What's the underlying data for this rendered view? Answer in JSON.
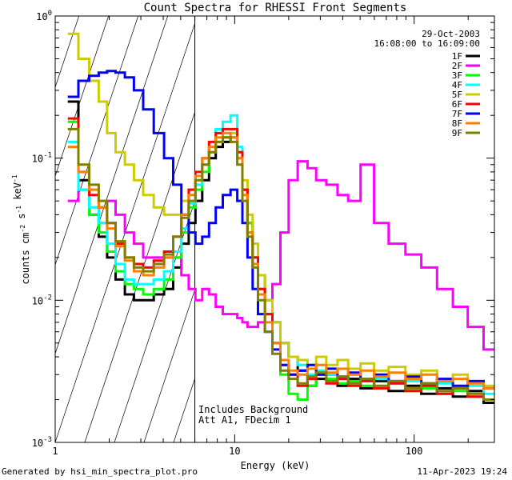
{
  "chart_data": {
    "type": "line",
    "title": "Count Spectra for RHESSI Front Segments",
    "xlabel": "Energy (keV)",
    "ylabel": "counts cm^-2 s^-1 keV^-1",
    "xscale": "log",
    "yscale": "log",
    "xlim": [
      1.0,
      280.0
    ],
    "ylim": [
      0.001,
      1.0
    ],
    "x_tick_labels": [
      {
        "value": 1,
        "label": "1"
      },
      {
        "value": 10,
        "label": "10"
      },
      {
        "value": 100,
        "label": "100"
      }
    ],
    "y_tick_labels": [
      {
        "value": 0.001,
        "base": "10",
        "exp": "-3"
      },
      {
        "value": 0.01,
        "base": "10",
        "exp": "-2"
      },
      {
        "value": 0.1,
        "base": "10",
        "exp": "-1"
      },
      {
        "value": 1,
        "base": "10",
        "exp": "0"
      }
    ],
    "date": "29-Oct-2003",
    "time_range": "16:08:00 to 16:09:00",
    "shaded_region": {
      "x_from": 1.0,
      "x_to": 6.0,
      "style": "diagonal hatch"
    },
    "annotations": [
      "Includes Background",
      "Att A1, FDecim 1"
    ],
    "series": [
      {
        "name": "1F",
        "color": "#000000",
        "x": [
          1.25,
          1.45,
          1.65,
          1.85,
          2.05,
          2.3,
          2.6,
          2.9,
          3.3,
          3.8,
          4.3,
          4.8,
          5.3,
          5.8,
          6.3,
          6.9,
          7.5,
          8.2,
          9.0,
          10.0,
          10.7,
          11.4,
          12.2,
          13.0,
          14.0,
          15.5,
          17.0,
          19.0,
          21.0,
          24.0,
          27.0,
          30.0,
          35.0,
          40.0,
          46.0,
          55.0,
          65.0,
          80.0,
          100.0,
          120.0,
          150.0,
          180.0,
          220.0,
          270.0
        ],
        "y": [
          0.25,
          0.07,
          0.04,
          0.028,
          0.02,
          0.014,
          0.011,
          0.01,
          0.01,
          0.011,
          0.012,
          0.017,
          0.025,
          0.035,
          0.05,
          0.07,
          0.1,
          0.12,
          0.13,
          0.14,
          0.1,
          0.06,
          0.035,
          0.02,
          0.015,
          0.01,
          0.007,
          0.005,
          0.004,
          0.0032,
          0.0025,
          0.0028,
          0.003,
          0.0025,
          0.0028,
          0.0024,
          0.0027,
          0.0023,
          0.0025,
          0.0022,
          0.0024,
          0.0021,
          0.0023,
          0.0019
        ]
      },
      {
        "name": "2F",
        "color": "#ff00ff",
        "x": [
          1.25,
          1.45,
          1.65,
          1.85,
          2.05,
          2.3,
          2.6,
          2.9,
          3.3,
          3.8,
          4.3,
          4.8,
          5.3,
          5.8,
          6.3,
          6.9,
          7.5,
          8.2,
          9.0,
          10.0,
          10.7,
          11.4,
          12.2,
          13.0,
          14.0,
          15.5,
          17.0,
          19.0,
          21.0,
          24.0,
          27.0,
          30.0,
          35.0,
          40.0,
          46.0,
          55.0,
          65.0,
          80.0,
          100.0,
          120.0,
          150.0,
          180.0,
          220.0,
          270.0
        ],
        "y": [
          0.05,
          0.06,
          0.04,
          0.035,
          0.05,
          0.04,
          0.03,
          0.025,
          0.02,
          0.02,
          0.02,
          0.02,
          0.015,
          0.012,
          0.01,
          0.012,
          0.011,
          0.009,
          0.008,
          0.008,
          0.0075,
          0.007,
          0.0065,
          0.0065,
          0.007,
          0.008,
          0.013,
          0.03,
          0.07,
          0.095,
          0.085,
          0.07,
          0.065,
          0.055,
          0.05,
          0.09,
          0.035,
          0.025,
          0.021,
          0.017,
          0.012,
          0.009,
          0.0065,
          0.0045
        ]
      },
      {
        "name": "3F",
        "color": "#00ff00",
        "x": [
          1.25,
          1.45,
          1.65,
          1.85,
          2.05,
          2.3,
          2.6,
          2.9,
          3.3,
          3.8,
          4.3,
          4.8,
          5.3,
          5.8,
          6.3,
          6.9,
          7.5,
          8.2,
          9.0,
          10.0,
          10.7,
          11.4,
          12.2,
          13.0,
          14.0,
          15.5,
          17.0,
          19.0,
          21.0,
          24.0,
          27.0,
          30.0,
          35.0,
          40.0,
          46.0,
          55.0,
          65.0,
          80.0,
          100.0,
          120.0,
          150.0,
          180.0,
          220.0,
          270.0
        ],
        "y": [
          0.18,
          0.06,
          0.04,
          0.03,
          0.022,
          0.016,
          0.013,
          0.012,
          0.011,
          0.012,
          0.014,
          0.02,
          0.03,
          0.045,
          0.06,
          0.08,
          0.11,
          0.13,
          0.14,
          0.15,
          0.11,
          0.06,
          0.035,
          0.02,
          0.012,
          0.008,
          0.005,
          0.003,
          0.0022,
          0.002,
          0.0025,
          0.003,
          0.0028,
          0.0026,
          0.0027,
          0.0025,
          0.0024,
          0.0026,
          0.0023,
          0.0024,
          0.0022,
          0.0023,
          0.0021,
          0.002
        ]
      },
      {
        "name": "4F",
        "color": "#00ffff",
        "x": [
          1.25,
          1.45,
          1.65,
          1.85,
          2.05,
          2.3,
          2.6,
          2.9,
          3.3,
          3.8,
          4.3,
          4.8,
          5.3,
          5.8,
          6.3,
          6.9,
          7.5,
          8.2,
          9.0,
          10.0,
          10.7,
          11.4,
          12.2,
          13.0,
          14.0,
          15.5,
          17.0,
          19.0,
          21.0,
          24.0,
          27.0,
          30.0,
          35.0,
          40.0,
          46.0,
          55.0,
          65.0,
          80.0,
          100.0,
          120.0,
          150.0,
          180.0,
          220.0,
          270.0
        ],
        "y": [
          0.13,
          0.06,
          0.045,
          0.035,
          0.025,
          0.018,
          0.014,
          0.013,
          0.013,
          0.014,
          0.016,
          0.022,
          0.032,
          0.048,
          0.065,
          0.09,
          0.12,
          0.16,
          0.18,
          0.2,
          0.12,
          0.06,
          0.03,
          0.02,
          0.015,
          0.01,
          0.007,
          0.005,
          0.004,
          0.0035,
          0.003,
          0.0032,
          0.003,
          0.0028,
          0.003,
          0.0027,
          0.0028,
          0.0026,
          0.0027,
          0.0025,
          0.0026,
          0.0024,
          0.0025,
          0.0022
        ]
      },
      {
        "name": "5F",
        "color": "#cccc00",
        "x": [
          1.25,
          1.45,
          1.65,
          1.85,
          2.05,
          2.3,
          2.6,
          2.9,
          3.3,
          3.8,
          4.3,
          4.8,
          5.3,
          5.8,
          6.3,
          6.9,
          7.5,
          8.2,
          9.0,
          10.0,
          10.7,
          11.4,
          12.2,
          13.0,
          14.0,
          15.5,
          17.0,
          19.0,
          21.0,
          24.0,
          27.0,
          30.0,
          35.0,
          40.0,
          46.0,
          55.0,
          65.0,
          80.0,
          100.0,
          120.0,
          150.0,
          180.0,
          220.0,
          270.0
        ],
        "y": [
          0.75,
          0.5,
          0.35,
          0.25,
          0.15,
          0.11,
          0.09,
          0.07,
          0.055,
          0.045,
          0.04,
          0.04,
          0.05,
          0.06,
          0.07,
          0.09,
          0.11,
          0.13,
          0.14,
          0.15,
          0.11,
          0.07,
          0.04,
          0.025,
          0.015,
          0.01,
          0.007,
          0.005,
          0.004,
          0.0038,
          0.0035,
          0.004,
          0.0035,
          0.0038,
          0.0033,
          0.0036,
          0.0032,
          0.0034,
          0.003,
          0.0032,
          0.0028,
          0.003,
          0.0027,
          0.0025
        ]
      },
      {
        "name": "6F",
        "color": "#ff0000",
        "x": [
          1.25,
          1.45,
          1.65,
          1.85,
          2.05,
          2.3,
          2.6,
          2.9,
          3.3,
          3.8,
          4.3,
          4.8,
          5.3,
          5.8,
          6.3,
          6.9,
          7.5,
          8.2,
          9.0,
          10.0,
          10.7,
          11.4,
          12.2,
          13.0,
          14.0,
          15.5,
          17.0,
          19.0,
          21.0,
          24.0,
          27.0,
          30.0,
          35.0,
          40.0,
          46.0,
          55.0,
          65.0,
          80.0,
          100.0,
          120.0,
          150.0,
          180.0,
          220.0,
          270.0
        ],
        "y": [
          0.19,
          0.08,
          0.055,
          0.045,
          0.035,
          0.025,
          0.02,
          0.018,
          0.017,
          0.019,
          0.022,
          0.028,
          0.04,
          0.06,
          0.08,
          0.1,
          0.13,
          0.15,
          0.16,
          0.16,
          0.11,
          0.06,
          0.03,
          0.02,
          0.012,
          0.008,
          0.005,
          0.0035,
          0.003,
          0.0025,
          0.0028,
          0.003,
          0.0026,
          0.0028,
          0.0025,
          0.0027,
          0.0024,
          0.0026,
          0.0023,
          0.0025,
          0.0022,
          0.0024,
          0.0021,
          0.002
        ]
      },
      {
        "name": "7F",
        "color": "#0000ff",
        "x": [
          1.25,
          1.45,
          1.65,
          1.85,
          2.05,
          2.3,
          2.6,
          2.9,
          3.3,
          3.8,
          4.3,
          4.8,
          5.3,
          5.8,
          6.3,
          6.9,
          7.5,
          8.2,
          9.0,
          10.0,
          10.7,
          11.4,
          12.2,
          13.0,
          14.0,
          15.5,
          17.0,
          19.0,
          21.0,
          24.0,
          27.0,
          30.0,
          35.0,
          40.0,
          46.0,
          55.0,
          65.0,
          80.0,
          100.0,
          120.0,
          150.0,
          180.0,
          220.0,
          270.0
        ],
        "y": [
          0.27,
          0.35,
          0.38,
          0.4,
          0.41,
          0.4,
          0.37,
          0.3,
          0.22,
          0.15,
          0.1,
          0.065,
          0.04,
          0.03,
          0.025,
          0.028,
          0.035,
          0.045,
          0.055,
          0.06,
          0.05,
          0.035,
          0.02,
          0.012,
          0.008,
          0.006,
          0.0045,
          0.0035,
          0.003,
          0.0032,
          0.0035,
          0.003,
          0.0033,
          0.0029,
          0.0031,
          0.0028,
          0.003,
          0.0027,
          0.0029,
          0.0026,
          0.0028,
          0.0025,
          0.0027,
          0.0024
        ]
      },
      {
        "name": "8F",
        "color": "#ff8000",
        "x": [
          1.25,
          1.45,
          1.65,
          1.85,
          2.05,
          2.3,
          2.6,
          2.9,
          3.3,
          3.8,
          4.3,
          4.8,
          5.3,
          5.8,
          6.3,
          6.9,
          7.5,
          8.2,
          9.0,
          10.0,
          10.7,
          11.4,
          12.2,
          13.0,
          14.0,
          15.5,
          17.0,
          19.0,
          21.0,
          24.0,
          27.0,
          30.0,
          35.0,
          40.0,
          46.0,
          55.0,
          65.0,
          80.0,
          100.0,
          120.0,
          150.0,
          180.0,
          220.0,
          270.0
        ],
        "y": [
          0.12,
          0.08,
          0.06,
          0.045,
          0.032,
          0.024,
          0.019,
          0.016,
          0.015,
          0.017,
          0.02,
          0.028,
          0.04,
          0.055,
          0.075,
          0.1,
          0.12,
          0.14,
          0.15,
          0.14,
          0.1,
          0.055,
          0.03,
          0.018,
          0.011,
          0.007,
          0.005,
          0.0038,
          0.0032,
          0.003,
          0.0033,
          0.0035,
          0.0031,
          0.0033,
          0.003,
          0.0032,
          0.0029,
          0.0031,
          0.0028,
          0.003,
          0.0027,
          0.0028,
          0.0026,
          0.0024
        ]
      },
      {
        "name": "9F",
        "color": "#808000",
        "x": [
          1.25,
          1.45,
          1.65,
          1.85,
          2.05,
          2.3,
          2.6,
          2.9,
          3.3,
          3.8,
          4.3,
          4.8,
          5.3,
          5.8,
          6.3,
          6.9,
          7.5,
          8.2,
          9.0,
          10.0,
          10.7,
          11.4,
          12.2,
          13.0,
          14.0,
          15.5,
          17.0,
          19.0,
          21.0,
          24.0,
          27.0,
          30.0,
          35.0,
          40.0,
          46.0,
          55.0,
          65.0,
          80.0,
          100.0,
          120.0,
          150.0,
          180.0,
          220.0,
          270.0
        ],
        "y": [
          0.16,
          0.09,
          0.065,
          0.05,
          0.035,
          0.026,
          0.02,
          0.017,
          0.016,
          0.018,
          0.021,
          0.028,
          0.038,
          0.05,
          0.07,
          0.09,
          0.11,
          0.13,
          0.14,
          0.13,
          0.09,
          0.05,
          0.028,
          0.017,
          0.01,
          0.006,
          0.0042,
          0.0032,
          0.0028,
          0.0026,
          0.0029,
          0.0031,
          0.0027,
          0.0029,
          0.0026,
          0.0028,
          0.0025,
          0.0027,
          0.0024,
          0.0026,
          0.0023,
          0.0024,
          0.0022,
          0.002
        ]
      }
    ]
  },
  "footer": {
    "left": "Generated by hsi_min_spectra_plot.pro",
    "right": "11-Apr-2023 19:24"
  }
}
